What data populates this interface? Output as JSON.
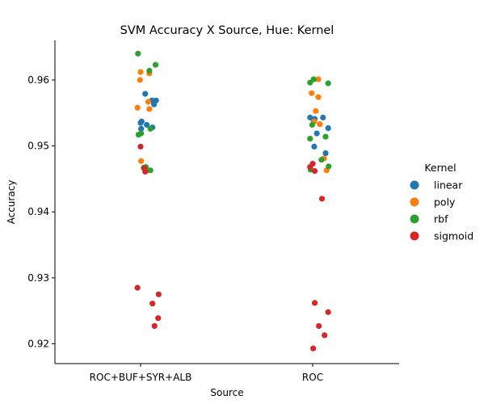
{
  "chart_data": {
    "type": "scatter",
    "title": "SVM Accuracy X Source, Hue: Kernel",
    "xlabel": "Source",
    "ylabel": "Accuracy",
    "categories": [
      "ROC+BUF+SYR+ALB",
      "ROC"
    ],
    "ylim": [
      0.917,
      0.966
    ],
    "yticks": [
      0.92,
      0.93,
      0.94,
      0.95,
      0.96
    ],
    "ytick_labels": [
      "0.92",
      "0.93",
      "0.94",
      "0.95",
      "0.96"
    ],
    "grid": false,
    "legend": {
      "title": "Kernel",
      "placement": "right"
    },
    "series": [
      {
        "name": "linear",
        "color": "#1f77b4",
        "points": [
          {
            "category": "ROC+BUF+SYR+ALB",
            "jitter": 0.09,
            "y": 0.9579
          },
          {
            "category": "ROC+BUF+SYR+ALB",
            "jitter": 0.22,
            "y": 0.9569
          },
          {
            "category": "ROC+BUF+SYR+ALB",
            "jitter": 0.3,
            "y": 0.9569
          },
          {
            "category": "ROC+BUF+SYR+ALB",
            "jitter": 0.26,
            "y": 0.9563
          },
          {
            "category": "ROC+BUF+SYR+ALB",
            "jitter": 0.02,
            "y": 0.9537
          },
          {
            "category": "ROC+BUF+SYR+ALB",
            "jitter": 0.0,
            "y": 0.9535
          },
          {
            "category": "ROC+BUF+SYR+ALB",
            "jitter": 0.12,
            "y": 0.9532
          },
          {
            "category": "ROC+BUF+SYR+ALB",
            "jitter": 0.23,
            "y": 0.9528
          },
          {
            "category": "ROC+BUF+SYR+ALB",
            "jitter": 0.01,
            "y": 0.9526
          },
          {
            "category": "ROC",
            "jitter": -0.05,
            "y": 0.9543
          },
          {
            "category": "ROC",
            "jitter": 0.04,
            "y": 0.9541
          },
          {
            "category": "ROC",
            "jitter": 0.2,
            "y": 0.9543
          },
          {
            "category": "ROC",
            "jitter": 0.02,
            "y": 0.9538
          },
          {
            "category": "ROC",
            "jitter": 0.3,
            "y": 0.9527
          },
          {
            "category": "ROC",
            "jitter": 0.08,
            "y": 0.9519
          },
          {
            "category": "ROC",
            "jitter": 0.03,
            "y": 0.9499
          },
          {
            "category": "ROC",
            "jitter": 0.25,
            "y": 0.9489
          }
        ]
      },
      {
        "name": "poly",
        "color": "#ff7f0e",
        "points": [
          {
            "category": "ROC+BUF+SYR+ALB",
            "jitter": 0.0,
            "y": 0.9612
          },
          {
            "category": "ROC+BUF+SYR+ALB",
            "jitter": 0.17,
            "y": 0.961
          },
          {
            "category": "ROC+BUF+SYR+ALB",
            "jitter": -0.01,
            "y": 0.96
          },
          {
            "category": "ROC+BUF+SYR+ALB",
            "jitter": 0.15,
            "y": 0.9567
          },
          {
            "category": "ROC+BUF+SYR+ALB",
            "jitter": -0.06,
            "y": 0.9558
          },
          {
            "category": "ROC+BUF+SYR+ALB",
            "jitter": 0.17,
            "y": 0.9556
          },
          {
            "category": "ROC+BUF+SYR+ALB",
            "jitter": 0.01,
            "y": 0.9477
          },
          {
            "category": "ROC+BUF+SYR+ALB",
            "jitter": 0.14,
            "y": 0.9463
          },
          {
            "category": "ROC",
            "jitter": 0.11,
            "y": 0.9601
          },
          {
            "category": "ROC",
            "jitter": -0.02,
            "y": 0.958
          },
          {
            "category": "ROC",
            "jitter": 0.11,
            "y": 0.9574
          },
          {
            "category": "ROC",
            "jitter": 0.06,
            "y": 0.9553
          },
          {
            "category": "ROC",
            "jitter": 0.03,
            "y": 0.9537
          },
          {
            "category": "ROC",
            "jitter": 0.14,
            "y": 0.9533
          },
          {
            "category": "ROC",
            "jitter": 0.22,
            "y": 0.9481
          },
          {
            "category": "ROC",
            "jitter": 0.27,
            "y": 0.9463
          }
        ]
      },
      {
        "name": "rbf",
        "color": "#2ca02c",
        "points": [
          {
            "category": "ROC+BUF+SYR+ALB",
            "jitter": -0.05,
            "y": 0.964
          },
          {
            "category": "ROC+BUF+SYR+ALB",
            "jitter": 0.29,
            "y": 0.9623
          },
          {
            "category": "ROC+BUF+SYR+ALB",
            "jitter": 0.17,
            "y": 0.9614
          },
          {
            "category": "ROC+BUF+SYR+ALB",
            "jitter": 0.19,
            "y": 0.9526
          },
          {
            "category": "ROC+BUF+SYR+ALB",
            "jitter": 0.01,
            "y": 0.9519
          },
          {
            "category": "ROC+BUF+SYR+ALB",
            "jitter": -0.04,
            "y": 0.9517
          },
          {
            "category": "ROC+BUF+SYR+ALB",
            "jitter": 0.1,
            "y": 0.9468
          },
          {
            "category": "ROC+BUF+SYR+ALB",
            "jitter": 0.06,
            "y": 0.9467
          },
          {
            "category": "ROC+BUF+SYR+ALB",
            "jitter": 0.19,
            "y": 0.9463
          },
          {
            "category": "ROC",
            "jitter": -0.05,
            "y": 0.9596
          },
          {
            "category": "ROC",
            "jitter": 0.02,
            "y": 0.9601
          },
          {
            "category": "ROC",
            "jitter": 0.3,
            "y": 0.9595
          },
          {
            "category": "ROC",
            "jitter": -0.01,
            "y": 0.9532
          },
          {
            "category": "ROC",
            "jitter": 0.25,
            "y": 0.9514
          },
          {
            "category": "ROC",
            "jitter": -0.05,
            "y": 0.9511
          },
          {
            "category": "ROC",
            "jitter": 0.17,
            "y": 0.9479
          },
          {
            "category": "ROC",
            "jitter": 0.31,
            "y": 0.9469
          },
          {
            "category": "ROC",
            "jitter": -0.04,
            "y": 0.9464
          }
        ]
      },
      {
        "name": "sigmoid",
        "color": "#d62728",
        "points": [
          {
            "category": "ROC+BUF+SYR+ALB",
            "jitter": 0.0,
            "y": 0.9499
          },
          {
            "category": "ROC+BUF+SYR+ALB",
            "jitter": 0.07,
            "y": 0.9466
          },
          {
            "category": "ROC+BUF+SYR+ALB",
            "jitter": 0.09,
            "y": 0.9461
          },
          {
            "category": "ROC+BUF+SYR+ALB",
            "jitter": -0.06,
            "y": 0.9285
          },
          {
            "category": "ROC+BUF+SYR+ALB",
            "jitter": 0.35,
            "y": 0.9275
          },
          {
            "category": "ROC+BUF+SYR+ALB",
            "jitter": 0.23,
            "y": 0.9261
          },
          {
            "category": "ROC+BUF+SYR+ALB",
            "jitter": 0.34,
            "y": 0.9239
          },
          {
            "category": "ROC+BUF+SYR+ALB",
            "jitter": 0.27,
            "y": 0.9227
          },
          {
            "category": "ROC",
            "jitter": -0.05,
            "y": 0.9468
          },
          {
            "category": "ROC",
            "jitter": 0.0,
            "y": 0.9473
          },
          {
            "category": "ROC",
            "jitter": 0.04,
            "y": 0.9462
          },
          {
            "category": "ROC",
            "jitter": 0.18,
            "y": 0.942
          },
          {
            "category": "ROC",
            "jitter": 0.04,
            "y": 0.9262
          },
          {
            "category": "ROC",
            "jitter": 0.3,
            "y": 0.9248
          },
          {
            "category": "ROC",
            "jitter": 0.12,
            "y": 0.9227
          },
          {
            "category": "ROC",
            "jitter": 0.23,
            "y": 0.9213
          },
          {
            "category": "ROC",
            "jitter": 0.01,
            "y": 0.9193
          }
        ]
      }
    ]
  }
}
